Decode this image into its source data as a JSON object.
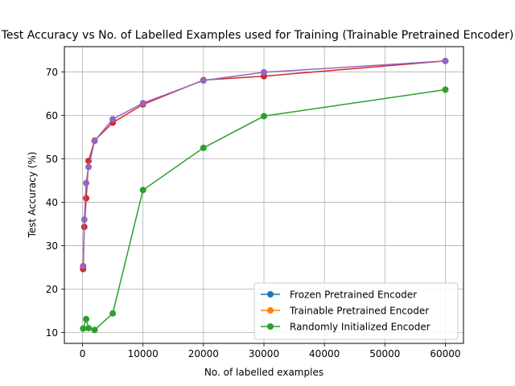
{
  "chart_data": {
    "type": "line",
    "title": "Test Accuracy vs No. of Labelled Examples used for Training (Trainable Pretrained Encoder)",
    "xlabel": "No. of labelled examples",
    "ylabel": "Test Accuracy (%)",
    "xlim": [
      -3000,
      63000
    ],
    "ylim": [
      7.5,
      75.8
    ],
    "xticks": [
      0,
      10000,
      20000,
      30000,
      40000,
      50000,
      60000
    ],
    "xtick_labels": [
      "0",
      "10000",
      "20000",
      "30000",
      "40000",
      "50000",
      "60000"
    ],
    "yticks": [
      10,
      20,
      30,
      40,
      50,
      60,
      70
    ],
    "ytick_labels": [
      "10",
      "20",
      "30",
      "40",
      "50",
      "60",
      "70"
    ],
    "grid": true,
    "legend_position": "lower-right",
    "series": [
      {
        "name": "",
        "color": "#d62728",
        "in_legend": false,
        "x": [
          100,
          300,
          600,
          1000,
          2000,
          5000,
          10000,
          20000,
          30000,
          60000
        ],
        "y": [
          24.6,
          34.3,
          40.9,
          49.5,
          54.2,
          58.3,
          62.5,
          68.1,
          69.0,
          72.5
        ]
      },
      {
        "name": "Frozen Pretrained Encoder",
        "color": "#1f77b4",
        "in_legend": true,
        "x": [],
        "y": []
      },
      {
        "name": "Trainable Pretrained Encoder",
        "color": "#ff7f0e",
        "in_legend": true,
        "x": [],
        "y": []
      },
      {
        "name": "Randomly Initialized Encoder",
        "color": "#2ca02c",
        "in_legend": true,
        "x": [
          100,
          600,
          1000,
          2000,
          5000,
          10000,
          20000,
          30000,
          60000
        ],
        "y": [
          10.9,
          13.1,
          11.0,
          10.6,
          14.4,
          42.8,
          52.5,
          59.8,
          65.9
        ]
      },
      {
        "name": "",
        "color": "#9467bd",
        "in_legend": false,
        "x": [
          100,
          300,
          600,
          1000,
          2000,
          5000,
          10000,
          20000,
          30000,
          60000
        ],
        "y": [
          25.3,
          36.0,
          44.4,
          48.1,
          54.1,
          59.1,
          62.8,
          68.0,
          69.9,
          72.5
        ]
      }
    ]
  }
}
